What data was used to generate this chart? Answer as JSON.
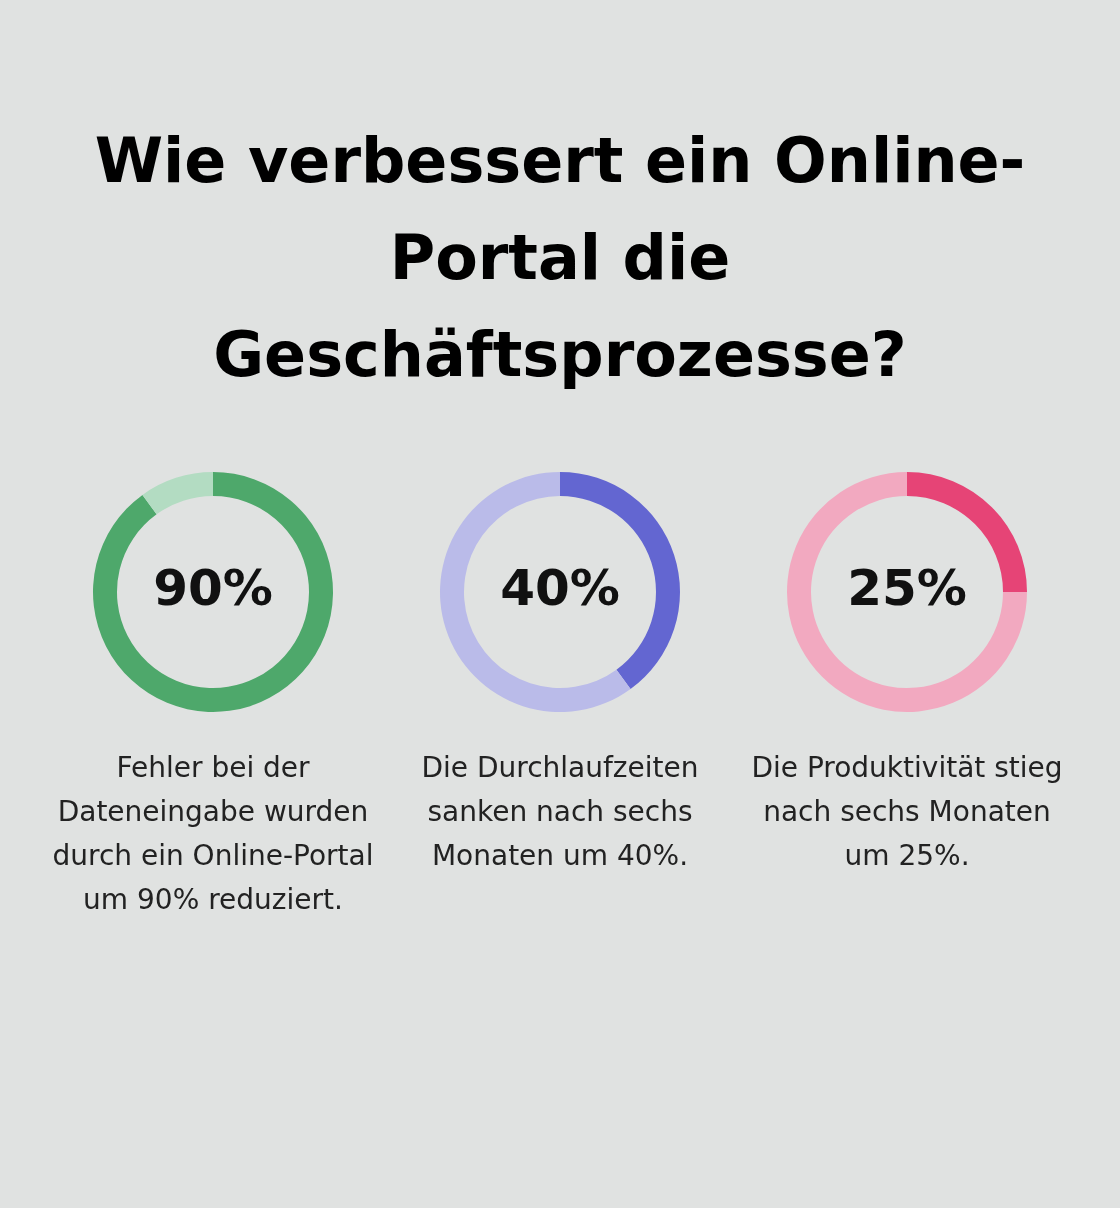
{
  "chart_data": [
    {
      "type": "donut",
      "title": "Wie verbessert ein Online-Portal die Geschäftsprozesse?",
      "categories": [
        null,
        null
      ],
      "values": [
        90,
        10
      ],
      "colors": [
        "#4ea86b",
        "#b3dcc2"
      ],
      "value_labels": [
        "90%",
        null
      ],
      "annotations": [
        "Fehler bei der Dateneingabe wurden durch ein Online-Portal um 90% reduziert."
      ]
    },
    {
      "type": "donut",
      "categories": [
        null,
        null
      ],
      "values": [
        40,
        60
      ],
      "colors": [
        "#6366d1",
        "#babbe9"
      ],
      "value_labels": [
        "40%",
        null
      ],
      "annotations": [
        "Die Durchlaufzeiten sanken nach sechs Monaten um 40%."
      ]
    },
    {
      "type": "donut",
      "categories": [
        null,
        null
      ],
      "values": [
        25,
        75
      ],
      "colors": [
        "#e64476",
        "#f2a9c0"
      ],
      "value_labels": [
        "25%",
        null
      ],
      "annotations": [
        "Die Produktivität stieg nach sechs Monaten um 25%."
      ]
    }
  ]
}
